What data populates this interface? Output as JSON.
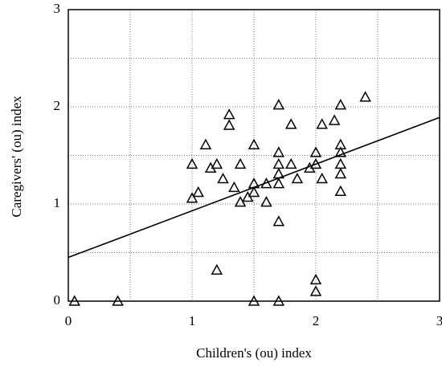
{
  "chart_data": {
    "type": "scatter",
    "xlabel": "Children's (ou) index",
    "ylabel": "Caregivers' (ou) index",
    "x": [
      0.05,
      0.4,
      1.5,
      1.7,
      2.0,
      2.0,
      1.2,
      1.7,
      1.0,
      1.05,
      1.0,
      1.11,
      1.15,
      1.2,
      1.25,
      1.3,
      1.3,
      1.34,
      1.39,
      1.39,
      1.45,
      1.5,
      1.5,
      1.5,
      1.6,
      1.6,
      1.7,
      1.7,
      1.7,
      1.7,
      1.7,
      1.8,
      1.8,
      1.85,
      1.95,
      2.0,
      2.0,
      2.05,
      2.05,
      2.15,
      2.2,
      2.2,
      2.2,
      2.2,
      2.2,
      2.2,
      2.4
    ],
    "values": [
      0,
      0,
      0,
      0,
      0.1,
      0.22,
      0.32,
      0.82,
      1.06,
      1.12,
      1.41,
      1.61,
      1.37,
      1.41,
      1.26,
      1.92,
      1.81,
      1.17,
      1.41,
      1.02,
      1.07,
      1.61,
      1.21,
      1.12,
      1.21,
      1.02,
      2.02,
      1.53,
      1.41,
      1.31,
      1.21,
      1.82,
      1.41,
      1.26,
      1.37,
      1.53,
      1.41,
      1.26,
      1.82,
      1.86,
      2.02,
      1.61,
      1.53,
      1.41,
      1.31,
      1.13,
      2.1
    ],
    "color": "#000000",
    "marker": "triangle",
    "trendline": {
      "x": [
        0,
        3
      ],
      "values": [
        0.45,
        1.89
      ]
    },
    "xlim": [
      0,
      3
    ],
    "ylim": [
      0,
      3
    ],
    "xticks": [
      0,
      1,
      2,
      3
    ],
    "yticks": [
      0,
      1,
      2,
      3
    ],
    "minor_xticks": [
      0.5,
      1.5,
      2.5
    ],
    "minor_yticks": [
      0.5,
      1.5,
      2.5
    ],
    "grid": true
  }
}
